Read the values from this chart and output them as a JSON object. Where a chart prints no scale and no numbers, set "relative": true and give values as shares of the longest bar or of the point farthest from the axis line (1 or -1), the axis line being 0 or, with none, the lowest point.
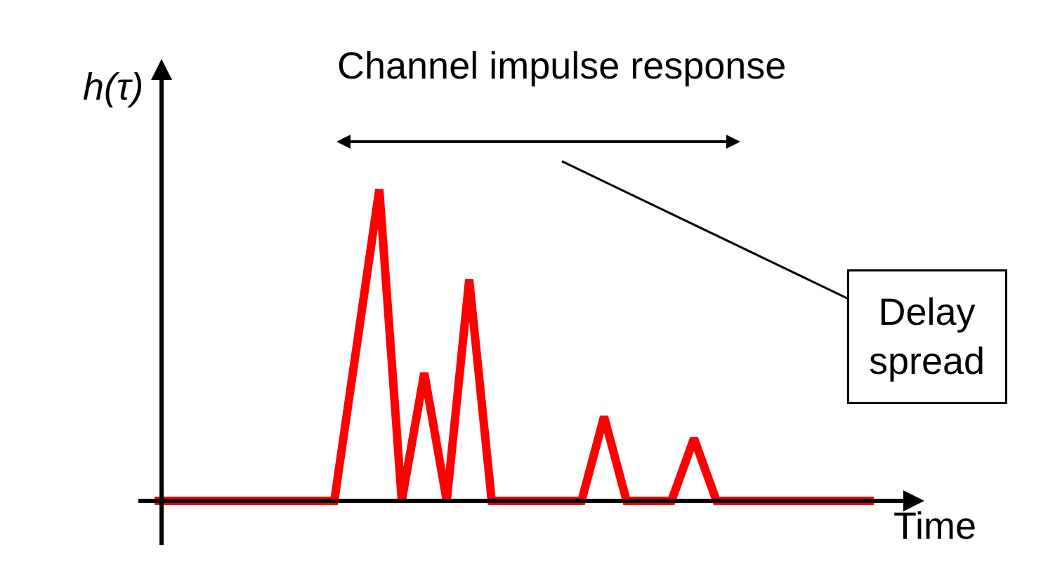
{
  "chart_data": {
    "type": "line",
    "title": "Channel impulse response",
    "xlabel": "Time",
    "ylabel": "h(τ)",
    "annotations": [
      "Delay spread"
    ],
    "relative": true,
    "categories": [
      null,
      null,
      null,
      null,
      null,
      null,
      null,
      null,
      null,
      null,
      null,
      null,
      null,
      null,
      null,
      null,
      null,
      null,
      null,
      null,
      null,
      null,
      null,
      null,
      null,
      null,
      null,
      null,
      null,
      null,
      null,
      null,
      null
    ],
    "series": [
      {
        "color": "#ff0000",
        "values": [
          0,
          0,
          0,
          0,
          0,
          0,
          0,
          0,
          0,
          0.5,
          1,
          0,
          0.41,
          0,
          0.71,
          0,
          0,
          0,
          0,
          0,
          0.27,
          0,
          0,
          0,
          0.2,
          0,
          0,
          0,
          0,
          0,
          0,
          0,
          0
        ]
      }
    ]
  }
}
